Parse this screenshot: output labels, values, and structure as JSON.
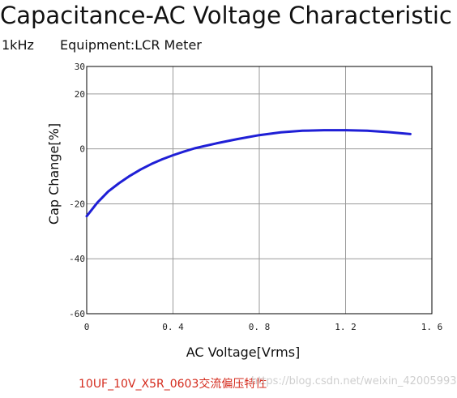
{
  "header": {
    "title": "Capacitance-AC Voltage Characteristic",
    "frequency": "1kHz",
    "equipment": "Equipment:LCR Meter"
  },
  "caption": "10UF_10V_X5R_0603交流偏压特性",
  "watermark": "https://blog.csdn.net/weixin_42005993",
  "chart_data": {
    "type": "line",
    "title": "Capacitance-AC Voltage Characteristic",
    "xlabel": "AC Voltage[Vrms]",
    "ylabel": "Cap Change[%]",
    "xlim": [
      0,
      1.6
    ],
    "ylim": [
      -60,
      30
    ],
    "x_ticks": [
      "0",
      "0.4",
      "0.8",
      "1.2",
      "1.6"
    ],
    "y_ticks": [
      "30",
      "20",
      "0",
      "-20",
      "-40",
      "-60"
    ],
    "grid": true,
    "series_color": "#1f1fd6",
    "series": [
      {
        "x": [
          0.0,
          0.02,
          0.05,
          0.1,
          0.15,
          0.2,
          0.25,
          0.3,
          0.35,
          0.4,
          0.45,
          0.5,
          0.6,
          0.7,
          0.8,
          0.9,
          1.0,
          1.1,
          1.2,
          1.3,
          1.4,
          1.5
        ],
        "y": [
          -24.5,
          -22.5,
          -19.5,
          -15.5,
          -12.5,
          -9.8,
          -7.5,
          -5.5,
          -3.8,
          -2.3,
          -1.0,
          0.2,
          2.0,
          3.6,
          5.0,
          6.0,
          6.6,
          6.8,
          6.8,
          6.6,
          6.1,
          5.4
        ]
      }
    ]
  }
}
